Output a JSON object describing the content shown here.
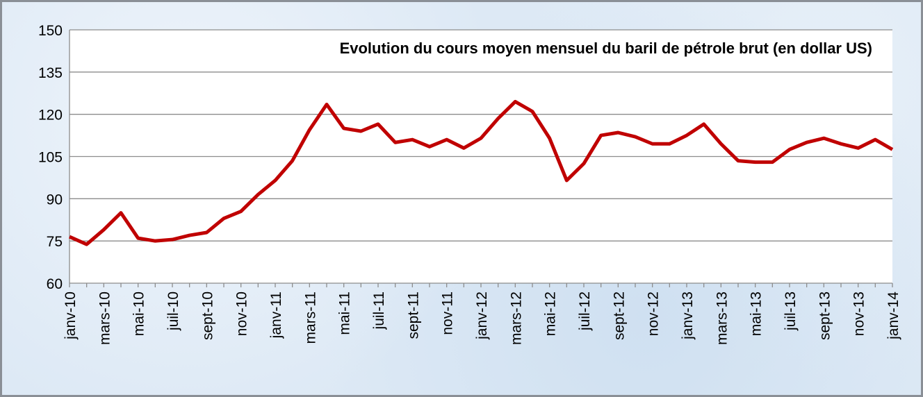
{
  "chart_data": {
    "type": "line",
    "title": "Evolution du cours moyen mensuel du baril de pétrole brut (en dollar US)",
    "categories": [
      "janv-10",
      null,
      "mars-10",
      null,
      "mai-10",
      null,
      "juil-10",
      null,
      "sept-10",
      null,
      "nov-10",
      null,
      "janv-11",
      null,
      "mars-11",
      null,
      "mai-11",
      null,
      "juil-11",
      null,
      "sept-11",
      null,
      "nov-11",
      null,
      "janv-12",
      null,
      "mars-12",
      null,
      "mai-12",
      null,
      "juil-12",
      null,
      "sept-12",
      null,
      "nov-12",
      null,
      "janv-13",
      null,
      "mars-13",
      null,
      "mai-13",
      null,
      "juil-13",
      null,
      "sept-13",
      null,
      "nov-13",
      null,
      "janv-14"
    ],
    "series": [
      {
        "color": "#c00000",
        "values": [
          76.5,
          73.8,
          79,
          85,
          76,
          75,
          75.5,
          77,
          78,
          83,
          85.5,
          91.5,
          96.5,
          103.5,
          114.5,
          123.5,
          115,
          114,
          116.5,
          110,
          111,
          108.5,
          111,
          108,
          111.5,
          118.5,
          124.5,
          121,
          111.5,
          96.5,
          102.5,
          112.5,
          113.5,
          112,
          109.5,
          109.5,
          112.5,
          116.5,
          109.5,
          103.5,
          103,
          103,
          107.5,
          110,
          111.5,
          109.5,
          108,
          111,
          107.5
        ]
      }
    ],
    "ylim": [
      60,
      150
    ],
    "yticks": [
      60,
      75,
      90,
      105,
      120,
      135,
      150
    ],
    "grid": true
  }
}
